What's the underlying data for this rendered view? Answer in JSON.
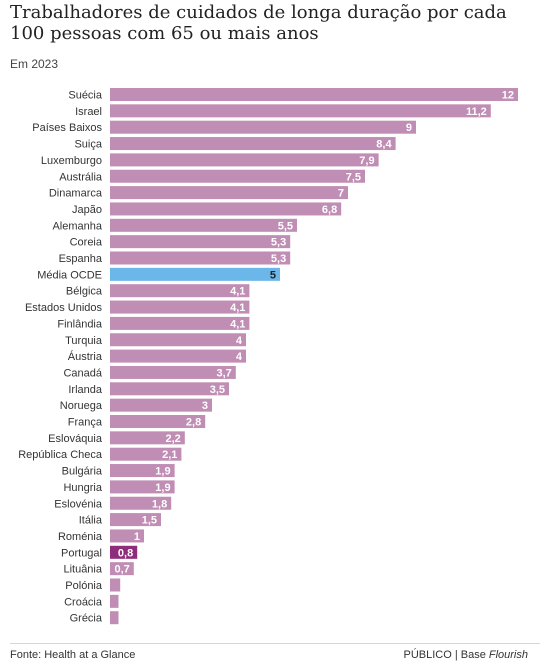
{
  "header": {
    "title": "Trabalhadores de cuidados de longa duração por cada 100 pessoas com 65 ou mais anos",
    "subtitle": "Em 2023"
  },
  "footer": {
    "source": "Fonte: Health at a Glance",
    "credit_prefix": "PÚBLICO | Base ",
    "credit_brand": "Flourish"
  },
  "colors": {
    "default_bar": "#c08db4",
    "average_bar": "#6bb7e9",
    "highlight_bar": "#8e2d79"
  },
  "chart_data": {
    "type": "bar",
    "orientation": "horizontal",
    "xlim": [
      0,
      12
    ],
    "categories": [
      "Suécia",
      "Israel",
      "Países Baixos",
      "Suiça",
      "Luxemburgo",
      "Austrália",
      "Dinamarca",
      "Japão",
      "Alemanha",
      "Coreia",
      "Espanha",
      "Média OCDE",
      "Bélgica",
      "Estados Unidos",
      "Finlândia",
      "Turquia",
      "Áustria",
      "Canadá",
      "Irlanda",
      "Noruega",
      "França",
      "Eslováquia",
      "República Checa",
      "Bulgária",
      "Hungria",
      "Eslovénia",
      "Itália",
      "Roménia",
      "Portugal",
      "Lituânia",
      "Polónia",
      "Croácia",
      "Grécia"
    ],
    "values": [
      12,
      11.2,
      9,
      8.4,
      7.9,
      7.5,
      7,
      6.8,
      5.5,
      5.3,
      5.3,
      5,
      4.1,
      4.1,
      4.1,
      4,
      4,
      3.7,
      3.5,
      3,
      2.8,
      2.2,
      2.1,
      1.9,
      1.9,
      1.8,
      1.5,
      1,
      0.8,
      0.7,
      0.3,
      0.25,
      0.25
    ],
    "labels": [
      "12",
      "11,2",
      "9",
      "8,4",
      "7,9",
      "7,5",
      "7",
      "6,8",
      "5,5",
      "5,3",
      "5,3",
      "5",
      "4,1",
      "4,1",
      "4,1",
      "4",
      "4",
      "3,7",
      "3,5",
      "3",
      "2,8",
      "2,2",
      "2,1",
      "1,9",
      "1,9",
      "1,8",
      "1,5",
      "1",
      "0,8",
      "0,7",
      "",
      "",
      ""
    ],
    "highlight": {
      "Média OCDE": "average",
      "Portugal": "highlight"
    }
  }
}
